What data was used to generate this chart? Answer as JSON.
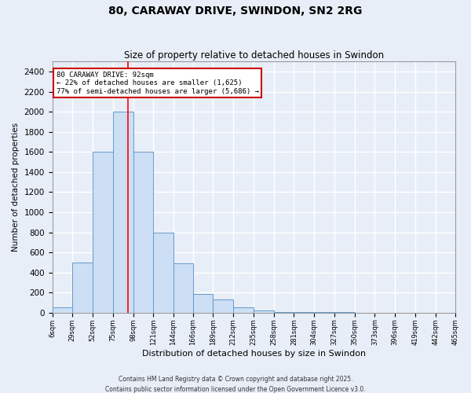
{
  "title1": "80, CARAWAY DRIVE, SWINDON, SN2 2RG",
  "title2": "Size of property relative to detached houses in Swindon",
  "xlabel": "Distribution of detached houses by size in Swindon",
  "ylabel": "Number of detached properties",
  "bin_edges": [
    6,
    29,
    52,
    75,
    98,
    121,
    144,
    166,
    189,
    212,
    235,
    258,
    281,
    304,
    327,
    350,
    373,
    396,
    419,
    442,
    465
  ],
  "bar_heights": [
    50,
    500,
    1600,
    2000,
    1600,
    800,
    490,
    190,
    130,
    50,
    20,
    10,
    5,
    5,
    3,
    2,
    1,
    1,
    0,
    0
  ],
  "bar_color": "#ccdff5",
  "bar_edge_color": "#6699cc",
  "red_line_x": 92,
  "ylim": [
    0,
    2500
  ],
  "yticks": [
    0,
    200,
    400,
    600,
    800,
    1000,
    1200,
    1400,
    1600,
    1800,
    2000,
    2200,
    2400
  ],
  "annotation_title": "80 CARAWAY DRIVE: 92sqm",
  "annotation_line1": "← 22% of detached houses are smaller (1,625)",
  "annotation_line2": "77% of semi-detached houses are larger (5,686) →",
  "annotation_box_color": "#ffffff",
  "annotation_box_edge_color": "#cc0000",
  "footnote1": "Contains HM Land Registry data © Crown copyright and database right 2025.",
  "footnote2": "Contains public sector information licensed under the Open Government Licence v3.0.",
  "background_color": "#e8eef8",
  "grid_color": "#ffffff"
}
